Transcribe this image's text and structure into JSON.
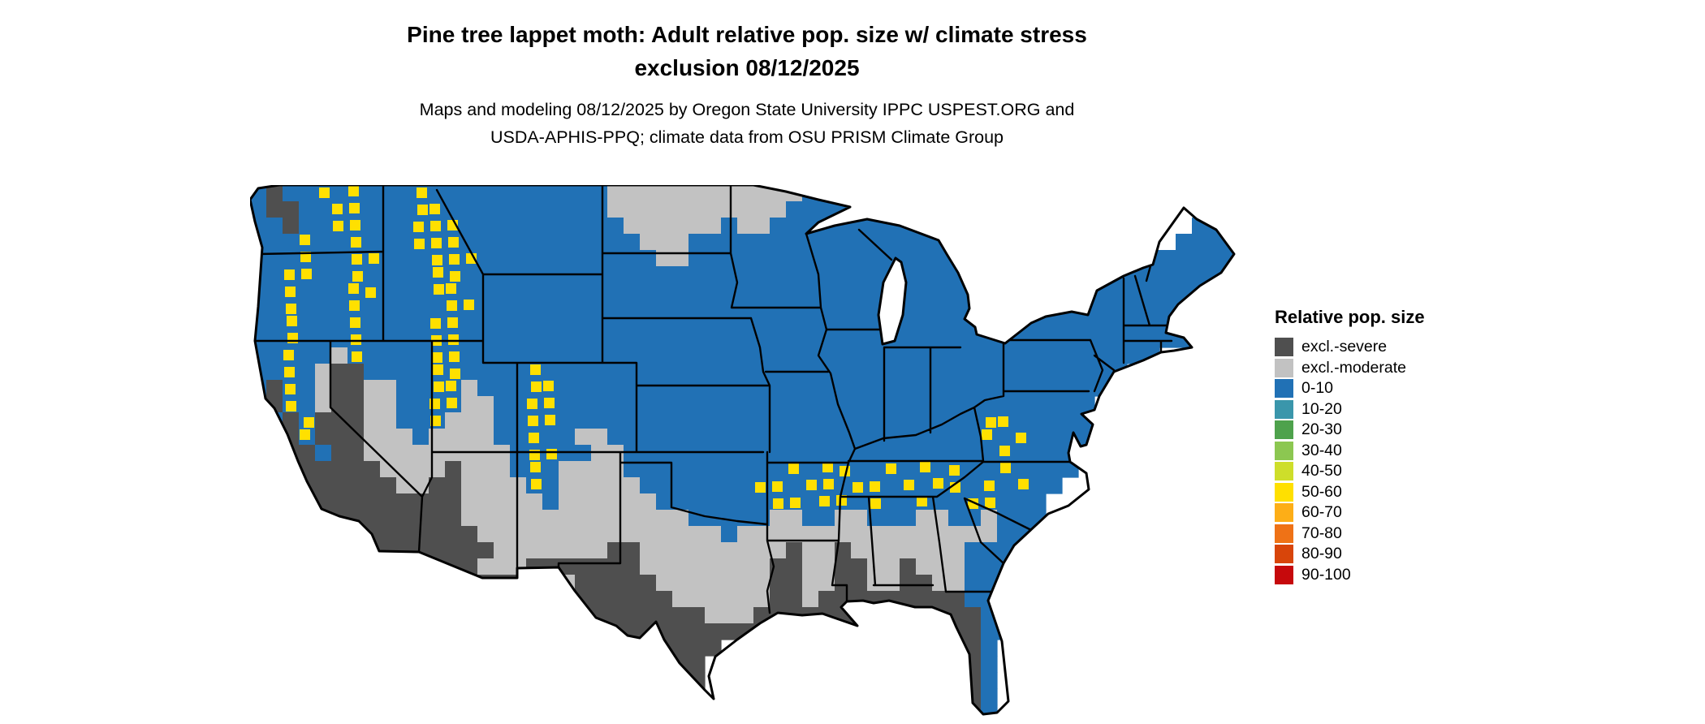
{
  "header": {
    "title_line1": "Pine tree lappet moth: Adult relative pop. size w/ climate stress",
    "title_line2": "exclusion 08/12/2025",
    "subtitle_line1": "Maps and modeling 08/12/2025 by Oregon State University IPPC USPEST.ORG and",
    "subtitle_line2": "USDA-APHIS-PPQ; climate data from OSU PRISM Climate Group"
  },
  "legend": {
    "title": "Relative pop. size",
    "items": [
      {
        "label": "excl.-severe",
        "color": "#4f4f4f"
      },
      {
        "label": "excl.-moderate",
        "color": "#c2c2c2"
      },
      {
        "label": "0-10",
        "color": "#2171b5"
      },
      {
        "label": "10-20",
        "color": "#3a96ab"
      },
      {
        "label": "20-30",
        "color": "#4ea24c"
      },
      {
        "label": "30-40",
        "color": "#8cc751"
      },
      {
        "label": "40-50",
        "color": "#cede2a"
      },
      {
        "label": "50-60",
        "color": "#ffe000"
      },
      {
        "label": "60-70",
        "color": "#fdae17"
      },
      {
        "label": "70-80",
        "color": "#ef7216"
      },
      {
        "label": "80-90",
        "color": "#d8450a"
      },
      {
        "label": "90-100",
        "color": "#c6090c"
      }
    ]
  },
  "map": {
    "description": "Coarse raster of CONUS relative population size categories. B=0-10 blue, D=excluded-severe dark gray, L=excluded-moderate light gray, Y=high-value yellow speckle, .=no data/water",
    "cell_size": 20,
    "palette": {
      "B": "#2171b5",
      "D": "#4f4f4f",
      "L": "#c2c2c2",
      "Y": "#ffe000"
    },
    "grid": [
      "BDBBYBYBBBYBBBBBBBBBBBLLLLLLLLLLLLBBBBBBBBBBB...................",
      "BDDBBYYBBBYYBBBBBBBBBBLLLLLLLLLLLBBBBBBBBBBBB...................",
      "BBDBBYYBBBYYYBBBBBBBBBBLLLLLLBLLBBBBBBBBBBBBB.............BBBB..",
      "BBBYBBYBBBYYYBBBBBBBBBBBLLLBBBBBBBBBBBBBBBBBB............BBBBBB",
      "BBBYBBYYBBBYYYBBBBBBBBBBBLLBBBBBBBBBBBBBBBBBBB.........BBBBBBB",
      "BBYYBBYBBBBYYBBBBBBBBBBBBBBBBBBBBBBBBBBBBBBBBB.......BBBBBBBBB",
      "BBYBBBYYBBBYYBBBBBBBBBBBBBBBBBBBBBBBBBBBBBBBBB....BBBBBBBBBB..",
      "BBYBBBYBBBBBYYBBBBBBBBBBBBBBBBBBBBBBBBBBBBBBBBB..BBBBBBBBB...",
      "BBYBBBYBBBBYYBBBBBBBBBBBBBBBBBBBBBBBBBBBBBBBBBBBBBBBBBBBB....",
      "BBYBBBYBBBBYYBBBBBBBBBBBBBBBBBBBBBBBBBBBBBBBBBBBBBBBBBBBBB...",
      "BBYBBLYBBBBYYBBBBBBBBBBBBBBBBBBBBBBBBBBBBBBBBBBBBBBBBBBB.....",
      "BBYBLDDBBBBYYBBBBYBBBBBBBBBBBBBBBBBBBBBBBBBBBBBBBBBBBB.......",
      "BDYBLDDLLBBYYLBBBYYBBBBBBBBBBBBBBBBBBBBBBBBBBBBBBBBBB........",
      "BDYBLDDLLBBYYLLBBYYBBBBBBBBBBBBBBBBBBBBBBBBBBBBBBBBB.........",
      "BBDYDDDLLBBYLLLBBYYBBBBBBBBBBBBBBBBBBBBBBBBBBYYBBBBB.........",
      "BBDYDDDLLLBLLLLBBYBBLLBBBBBBBBBBBBBBBBBBBBBBBYBYBBBBB........",
      "BBDDBDDLLLLLLLLLBYYBBLLBBBBBBBBBBBBBBBBBBBBBBBYBBBBB.........",
      ".BDDDDDDLLLLDLLLBYBLLLLBBBBBBBBBBYBYYBBYBYBYBBYBBBB..........",
      ".BDDDDDDDLLDDLLLLYBLLLLLBBBBBBBYYBYYBYYBYBYYBYBYBB...........",
      "..DDDDDDDDDDDLLLLLBLLLLLLBBBBBBBYYBYYBYBBYBBYYBBB............",
      "..BDDDDDDDDDDLLLLLLLLLLLLLLBBBBBLLBBLLBBBLLBBLBBB............",
      "...DDDDDDDDDDDLLLLLLLLLLLLLLLBLLLLLLLLLLLLLLLLBBB............",
      "....DDDDDDDDDDDLLLLLLLDDLLLLLLLLLDLLDLLLLLLLBBBB.............",
      ".....DDDDDDDDDLLLDDDDDDDLLLLLLLLDDLLDDLLDLLLBBBB.............",
      ".....DDDDDDDDDDDDDDLDDDDDLLLLLLLDDLLDDLLDDLLBBB..............",
      "..............DDDDDDDDDDDDLLLLLLDDLDDDDDDDDDBBB..............",
      "...............DDDDDDDDDDDDDLLLDDDDDDDDDDDDDDBB..............",
      "................DDDDDDDDDDDDDDDDD....D....DDDBB..............",
      ".................DDDDDDDDDDDD.............DDDB...............",
      ".......................DDDDD..............DDDB...............",
      "........................DDDD...............DDB...............",
      ".........................DDD...............DDB...............",
      "..........................DD................DB..............."
    ]
  }
}
